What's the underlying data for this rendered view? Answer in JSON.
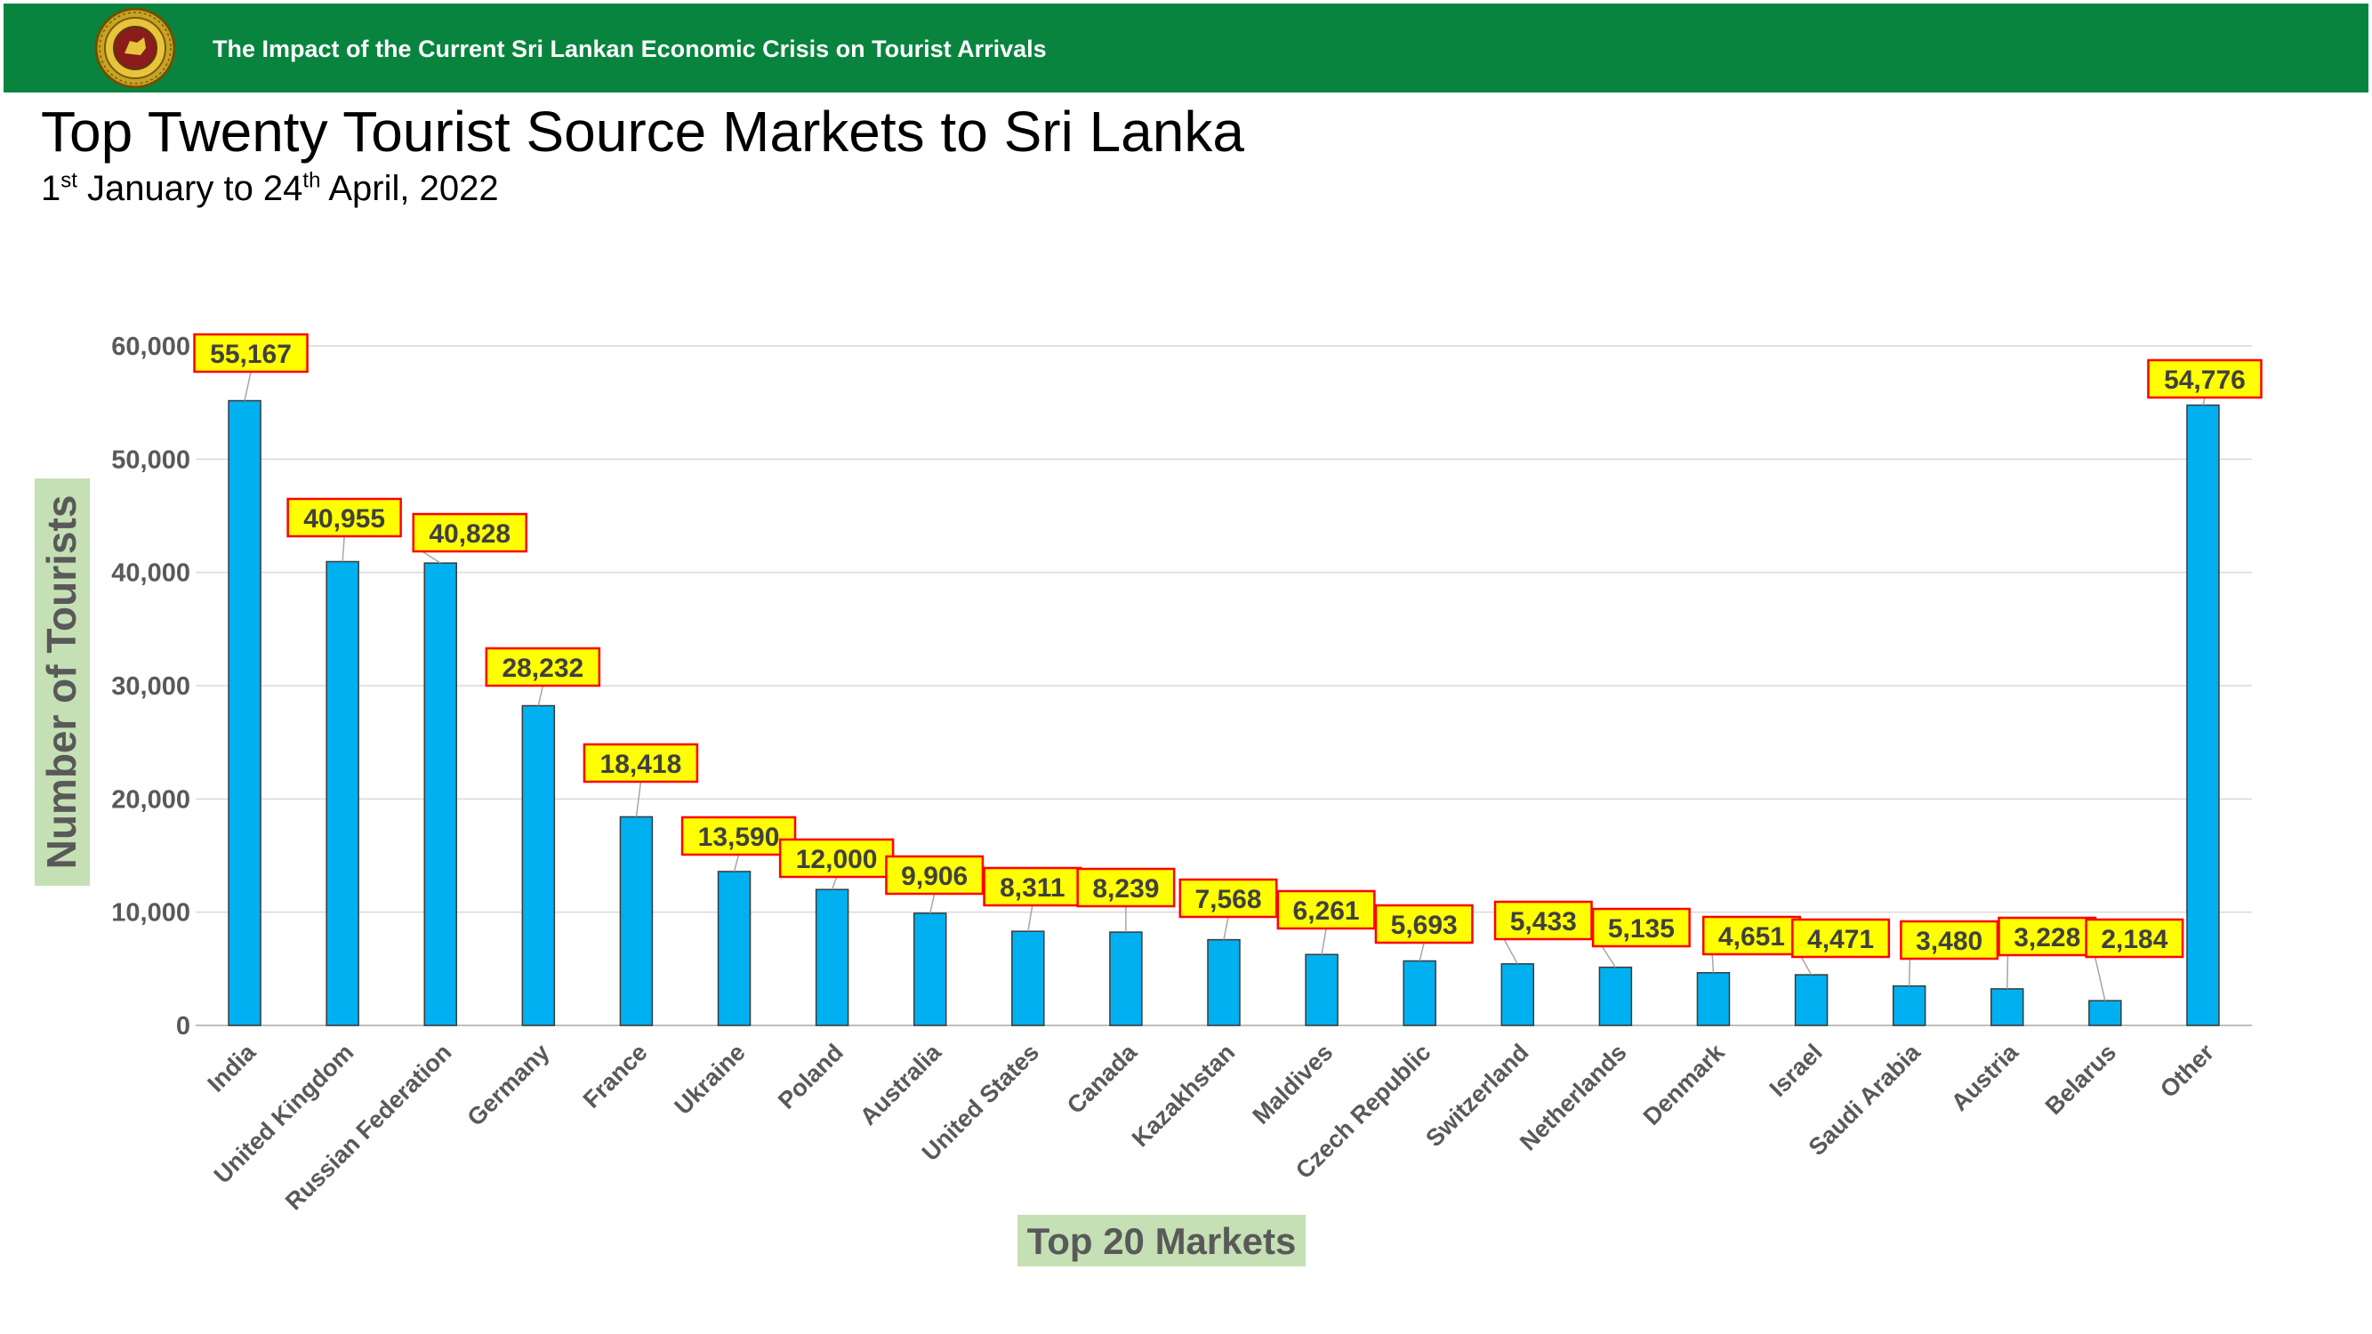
{
  "header": {
    "title": "The Impact of the Current Sri Lankan Economic Crisis on Tourist Arrivals",
    "logo_icon": "government-seal-icon",
    "bg_color": "#08843F"
  },
  "page": {
    "title": "Top Twenty Tourist Source Markets to Sri Lanka",
    "subtitle": {
      "day1": "1",
      "ord1": "st",
      "mid": " January to 24",
      "ord2": "th",
      "end": " April, 2022"
    }
  },
  "chart_data": {
    "type": "bar",
    "categories": [
      "India",
      "United Kingdom",
      "Russian Federation",
      "Germany",
      "France",
      "Ukraine",
      "Poland",
      "Australia",
      "United States",
      "Canada",
      "Kazakhstan",
      "Maldives",
      "Czech Republic",
      "Switzerland",
      "Netherlands",
      "Denmark",
      "Israel",
      "Saudi Arabia",
      "Austria",
      "Belarus",
      "Other"
    ],
    "values": [
      55167,
      40955,
      40828,
      28232,
      18418,
      13590,
      12000,
      9906,
      8311,
      8239,
      7568,
      6261,
      5693,
      5433,
      5135,
      4651,
      4471,
      3480,
      3228,
      2184,
      54776
    ],
    "data_labels": [
      "55,167",
      "40,955",
      "40,828",
      "28,232",
      "18,418",
      "13,590",
      "12,000",
      "9,906",
      "8,311",
      "8,239",
      "7,568",
      "6,261",
      "5,693",
      "5,433",
      "5,135",
      "4,651",
      "4,471",
      "3,480",
      "3,228",
      "2,184",
      "54,776"
    ],
    "xlabel": "Top 20 Markets",
    "ylabel": "Number of Tourists",
    "ylim": [
      0,
      60000
    ],
    "y_ticks": [
      0,
      10000,
      20000,
      30000,
      40000,
      50000,
      60000
    ],
    "y_tick_labels": [
      "0",
      "10,000",
      "20,000",
      "30,000",
      "40,000",
      "50,000",
      "60,000"
    ],
    "grid": true,
    "legend": "none",
    "bar_color": "#00B0F0",
    "label_bg_color": "#FFFF00",
    "label_border_color": "#FF0000",
    "axis_title_bg_color": "#C5E0B4"
  }
}
